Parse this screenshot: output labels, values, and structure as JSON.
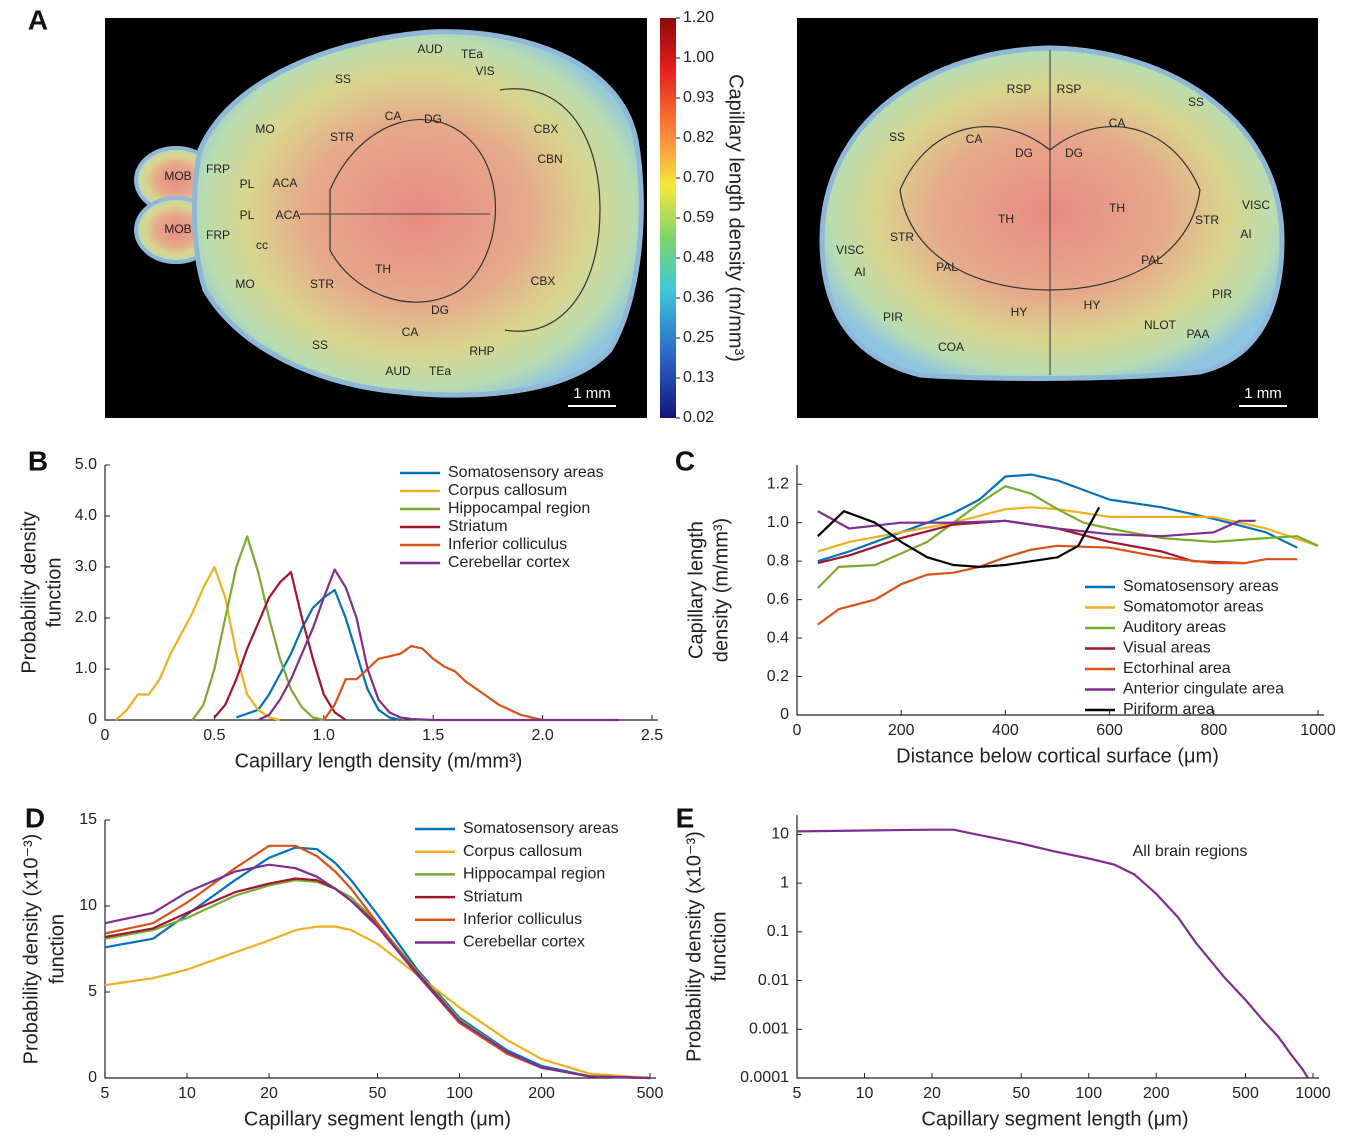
{
  "chart_data": [
    {
      "type": "colormap-image",
      "panel_label": "A",
      "colorbar": {
        "label": "Capillary length density (m/mm³)",
        "ticks": [
          {
            "value": 1.2,
            "label": "1.20"
          },
          {
            "value": 1,
            "label": "1.00"
          },
          0.93,
          0.82,
          {
            "value": 0.7,
            "label": "0.70"
          },
          0.59,
          0.48,
          0.36,
          0.25,
          0.13,
          0.02
        ]
      },
      "images": [
        {
          "labels": [
            "MOB",
            "MOB",
            "FRP",
            "FRP",
            "PL",
            "PL",
            "ACA",
            "ACA",
            "cc",
            "MO",
            "MO",
            "SS",
            "SS",
            "AUD",
            "AUD",
            "TEa",
            "TEa",
            "VIS",
            "CA",
            "CA",
            "DG",
            "DG",
            "STR",
            "STR",
            "TH",
            "CBX",
            "CBX",
            "CBN",
            "RHP"
          ],
          "scale_bar": "1 mm"
        },
        {
          "labels": [
            "RSP",
            "RSP",
            "SS",
            "SS",
            "CA",
            "CA",
            "DG",
            "DG",
            "TH",
            "TH",
            "STR",
            "STR",
            "VISC",
            "VISC",
            "AI",
            "AI",
            "PAL",
            "PAL",
            "PIR",
            "PIR",
            "HY",
            "HY",
            "COA",
            "NLOT",
            "PAA"
          ],
          "scale_bar": "1 mm"
        }
      ]
    },
    {
      "type": "line",
      "panel_label": "B",
      "xlabel": "Capillary length density (m/mm³)",
      "ylabel": [
        "Probability density",
        "function"
      ],
      "xlim": [
        0,
        2.5
      ],
      "xticks": [
        0,
        0.5,
        {
          "value": 1,
          "label": "1.0"
        },
        1.5,
        {
          "value": 2,
          "label": "2.0"
        },
        2.5
      ],
      "ylim": [
        0,
        5
      ],
      "yticks": [
        0,
        {
          "value": 1,
          "label": "1.0"
        },
        {
          "value": 2,
          "label": "2.0"
        },
        {
          "value": 3,
          "label": "3.0"
        },
        {
          "value": 4,
          "label": "4.0"
        },
        {
          "value": 5,
          "label": "5.0"
        }
      ],
      "series": [
        {
          "name": "Somatosensory areas",
          "color": "#0072bd",
          "x": [
            0.6,
            0.7,
            0.75,
            0.8,
            0.85,
            0.9,
            0.95,
            1.0,
            1.05,
            1.1,
            1.15,
            1.2,
            1.25,
            1.3,
            1.35
          ],
          "values": [
            0.05,
            0.2,
            0.5,
            0.9,
            1.3,
            1.8,
            2.2,
            2.4,
            2.55,
            2.0,
            1.3,
            0.6,
            0.2,
            0.05,
            0
          ]
        },
        {
          "name": "Corpus callosum",
          "color": "#edb120",
          "x": [
            0.05,
            0.1,
            0.15,
            0.2,
            0.25,
            0.3,
            0.35,
            0.4,
            0.45,
            0.5,
            0.55,
            0.6,
            0.65,
            0.7,
            0.75,
            0.8
          ],
          "values": [
            0,
            0.2,
            0.5,
            0.5,
            0.8,
            1.3,
            1.7,
            2.1,
            2.6,
            3.0,
            2.4,
            1.3,
            0.5,
            0.2,
            0.05,
            0
          ]
        },
        {
          "name": "Hippocampal region",
          "color": "#77ac30",
          "x": [
            0.4,
            0.45,
            0.5,
            0.55,
            0.6,
            0.65,
            0.7,
            0.75,
            0.8,
            0.85,
            0.9,
            0.95,
            1.0
          ],
          "values": [
            0,
            0.3,
            1.0,
            2.0,
            3.0,
            3.6,
            2.9,
            2.0,
            1.2,
            0.6,
            0.25,
            0.05,
            0
          ]
        },
        {
          "name": "Striatum",
          "color": "#a2142f",
          "x": [
            0.5,
            0.55,
            0.6,
            0.65,
            0.7,
            0.75,
            0.8,
            0.85,
            0.9,
            0.95,
            1.0,
            1.05,
            1.1
          ],
          "values": [
            0.05,
            0.3,
            0.8,
            1.4,
            1.9,
            2.4,
            2.7,
            2.9,
            2.0,
            1.2,
            0.5,
            0.15,
            0
          ]
        },
        {
          "name": "Inferior colliculus",
          "color": "#d95319",
          "x": [
            1.0,
            1.05,
            1.1,
            1.15,
            1.2,
            1.25,
            1.3,
            1.35,
            1.4,
            1.45,
            1.5,
            1.55,
            1.6,
            1.65,
            1.7,
            1.75,
            1.8,
            1.9,
            2.0
          ],
          "values": [
            0,
            0.3,
            0.8,
            0.8,
            1.0,
            1.2,
            1.25,
            1.3,
            1.45,
            1.4,
            1.2,
            1.05,
            0.95,
            0.75,
            0.6,
            0.45,
            0.3,
            0.1,
            0
          ]
        },
        {
          "name": "Cerebellar cortex",
          "color": "#7e2f8e",
          "x": [
            0.7,
            0.75,
            0.8,
            0.85,
            0.9,
            0.95,
            1.0,
            1.05,
            1.1,
            1.15,
            1.2,
            1.25,
            1.3,
            1.35,
            1.4,
            1.5,
            2.35
          ],
          "values": [
            0,
            0.1,
            0.4,
            0.8,
            1.3,
            1.8,
            2.4,
            2.95,
            2.6,
            2.0,
            1.0,
            0.4,
            0.15,
            0.05,
            0.02,
            0,
            0
          ]
        }
      ]
    },
    {
      "type": "line",
      "panel_label": "C",
      "xlabel": "Distance below cortical surface (μm)",
      "ylabel": [
        "Capillary length",
        "density (m/mm³)"
      ],
      "xlim": [
        0,
        1000
      ],
      "xticks": [
        0,
        200,
        400,
        600,
        800,
        1000
      ],
      "ylim": [
        0,
        1.3
      ],
      "yticks": [
        0,
        0.2,
        0.4,
        0.6,
        0.8,
        {
          "value": 1,
          "label": "1.0"
        },
        1.2
      ],
      "series": [
        {
          "name": "Somatosensory areas",
          "color": "#0072bd",
          "x": [
            40,
            100,
            200,
            300,
            350,
            400,
            450,
            500,
            550,
            600,
            700,
            800,
            900,
            960
          ],
          "values": [
            0.8,
            0.85,
            0.95,
            1.05,
            1.12,
            1.24,
            1.25,
            1.22,
            1.17,
            1.12,
            1.08,
            1.02,
            0.95,
            0.87
          ]
        },
        {
          "name": "Somatomotor areas",
          "color": "#edb120",
          "x": [
            40,
            100,
            200,
            300,
            400,
            450,
            500,
            600,
            700,
            800,
            900,
            1000
          ],
          "values": [
            0.85,
            0.9,
            0.95,
            1.0,
            1.07,
            1.08,
            1.07,
            1.03,
            1.03,
            1.03,
            0.97,
            0.88
          ]
        },
        {
          "name": "Auditory areas",
          "color": "#77ac30",
          "x": [
            40,
            80,
            150,
            250,
            300,
            350,
            400,
            450,
            500,
            550,
            600,
            700,
            800,
            900,
            960,
            1000
          ],
          "values": [
            0.66,
            0.77,
            0.78,
            0.9,
            1.0,
            1.1,
            1.19,
            1.15,
            1.07,
            1.0,
            0.97,
            0.92,
            0.9,
            0.92,
            0.93,
            0.88
          ]
        },
        {
          "name": "Visual areas",
          "color": "#a2142f",
          "x": [
            40,
            100,
            200,
            300,
            400,
            500,
            600,
            700,
            760,
            860
          ],
          "values": [
            0.79,
            0.83,
            0.92,
            0.99,
            1.01,
            0.97,
            0.9,
            0.85,
            0.8,
            0.79
          ]
        },
        {
          "name": "Ectorhinal area",
          "color": "#d95319",
          "x": [
            40,
            80,
            150,
            200,
            250,
            300,
            350,
            400,
            450,
            500,
            600,
            700,
            800,
            860,
            900,
            960
          ],
          "values": [
            0.47,
            0.55,
            0.6,
            0.68,
            0.73,
            0.74,
            0.77,
            0.82,
            0.86,
            0.88,
            0.87,
            0.82,
            0.79,
            0.79,
            0.81,
            0.81
          ]
        },
        {
          "name": "Anterior cingulate area",
          "color": "#7e2f8e",
          "x": [
            40,
            100,
            200,
            300,
            400,
            500,
            600,
            700,
            800,
            850,
            880
          ],
          "values": [
            1.06,
            0.97,
            1.0,
            1.0,
            1.01,
            0.97,
            0.94,
            0.93,
            0.95,
            1.01,
            1.01
          ]
        },
        {
          "name": "Piriform area",
          "color": "#000000",
          "x": [
            40,
            90,
            150,
            200,
            250,
            300,
            350,
            400,
            450,
            500,
            540,
            580
          ],
          "values": [
            0.93,
            1.06,
            1.0,
            0.9,
            0.82,
            0.78,
            0.77,
            0.78,
            0.8,
            0.82,
            0.88,
            1.08
          ]
        }
      ]
    },
    {
      "type": "line",
      "panel_label": "D",
      "xlabel": "Capillary segment length (μm)",
      "ylabel": [
        "Probability density (x10⁻³)",
        "function"
      ],
      "xscale": "log",
      "xlim": [
        5,
        500
      ],
      "xticks": [
        5,
        10,
        20,
        50,
        100,
        200,
        500
      ],
      "ylim": [
        0,
        15
      ],
      "yticks": [
        0,
        5,
        10,
        15
      ],
      "x": [
        5,
        7.5,
        10,
        15,
        20,
        25,
        30,
        35,
        40,
        50,
        70,
        100,
        150,
        200,
        300,
        500
      ],
      "series": [
        {
          "name": "Somatosensory areas",
          "color": "#0072bd",
          "values": [
            7.6,
            8.1,
            9.5,
            11.5,
            12.8,
            13.4,
            13.3,
            12.5,
            11.5,
            9.5,
            6.3,
            3.5,
            1.6,
            0.7,
            0.1,
            0
          ]
        },
        {
          "name": "Corpus callosum",
          "color": "#edb120",
          "values": [
            5.4,
            5.8,
            6.3,
            7.3,
            8.0,
            8.6,
            8.8,
            8.8,
            8.6,
            7.8,
            6.0,
            4.1,
            2.2,
            1.1,
            0.25,
            0
          ]
        },
        {
          "name": "Hippocampal region",
          "color": "#77ac30",
          "values": [
            8.1,
            8.6,
            9.3,
            10.6,
            11.2,
            11.5,
            11.4,
            11.0,
            10.5,
            9.0,
            6.2,
            3.4,
            1.5,
            0.6,
            0.1,
            0
          ]
        },
        {
          "name": "Striatum",
          "color": "#a2142f",
          "values": [
            8.2,
            8.7,
            9.6,
            10.8,
            11.3,
            11.6,
            11.5,
            11.0,
            10.3,
            8.9,
            6.1,
            3.3,
            1.4,
            0.6,
            0.1,
            0
          ]
        },
        {
          "name": "Inferior colliculus",
          "color": "#d95319",
          "values": [
            8.4,
            9.0,
            10.2,
            12.2,
            13.5,
            13.5,
            12.9,
            12.0,
            11.0,
            9.0,
            6.0,
            3.2,
            1.4,
            0.6,
            0.1,
            0
          ]
        },
        {
          "name": "Cerebellar cortex",
          "color": "#7e2f8e",
          "values": [
            9.0,
            9.6,
            10.8,
            12.0,
            12.4,
            12.2,
            11.7,
            11.0,
            10.3,
            8.8,
            6.0,
            3.3,
            1.5,
            0.6,
            0.1,
            0
          ]
        }
      ]
    },
    {
      "type": "line",
      "panel_label": "E",
      "xlabel": "Capillary segment length (μm)",
      "ylabel": [
        "Probability density  (x10⁻³)",
        "function"
      ],
      "annotation": "All brain regions",
      "xscale": "log",
      "yscale": "log",
      "xlim": [
        5,
        1000
      ],
      "xticks": [
        5,
        10,
        20,
        50,
        100,
        200,
        500,
        1000
      ],
      "ylim": [
        0.0001,
        25
      ],
      "yticks": [
        0.0001,
        0.001,
        0.01,
        0.1,
        1,
        10
      ],
      "series": [
        {
          "color": "#7e2f8e",
          "x": [
            5,
            10,
            20,
            25,
            30,
            40,
            50,
            70,
            100,
            130,
            160,
            200,
            250,
            300,
            400,
            500,
            600,
            700,
            800,
            900,
            950
          ],
          "values": [
            11.5,
            12,
            12.5,
            12.5,
            10.5,
            8,
            6.5,
            4.5,
            3.2,
            2.4,
            1.5,
            0.6,
            0.2,
            0.06,
            0.012,
            0.004,
            0.0015,
            0.0007,
            0.0003,
            0.00015,
            0.0001
          ]
        }
      ]
    }
  ]
}
